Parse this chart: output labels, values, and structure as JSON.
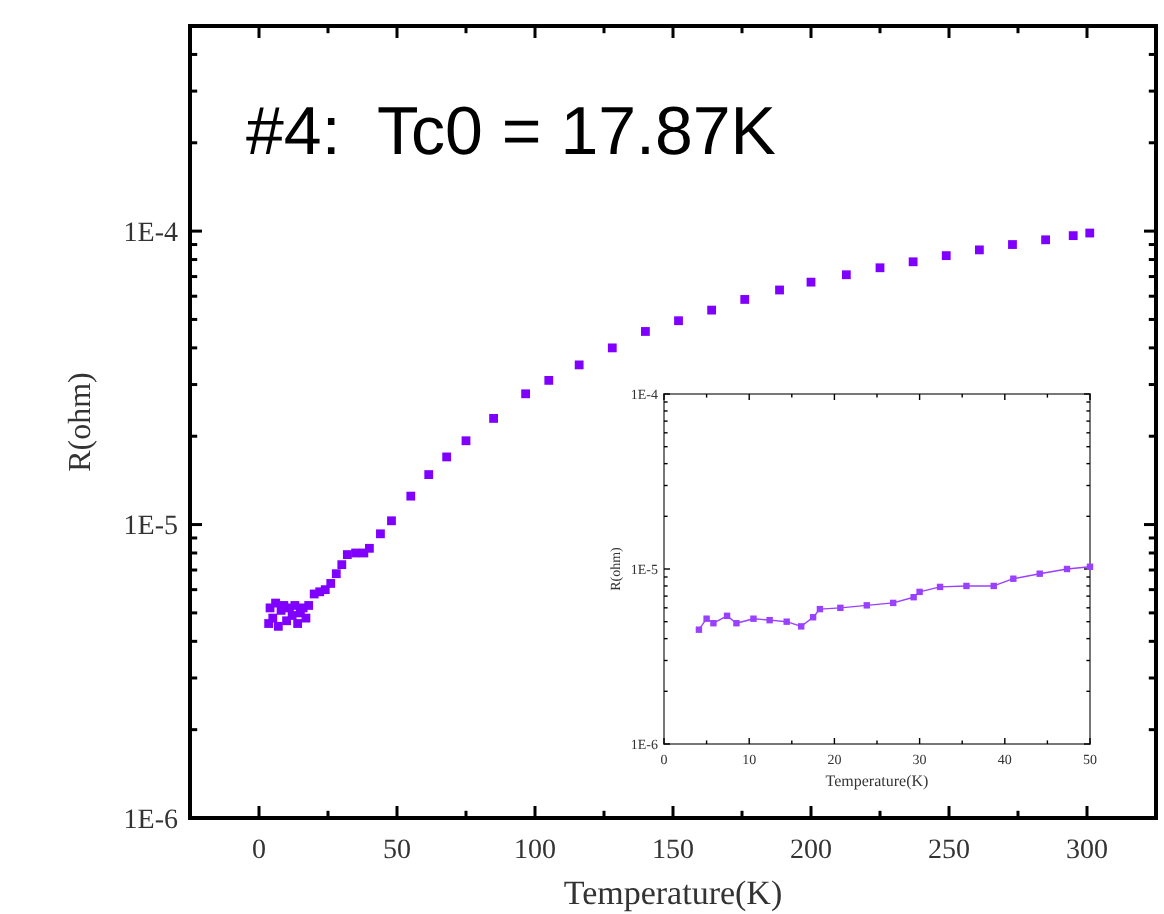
{
  "chart_data": [
    {
      "type": "scatter",
      "title": "#4:  Tc0 = 17.87K",
      "xlabel": "Temperature(K)",
      "ylabel": "R(ohm)",
      "log": "y",
      "marker": "square",
      "xlim": [
        -25,
        325
      ],
      "ylim": [
        1e-06,
        0.0005
      ],
      "xticks": [
        0,
        {
          "value": 25,
          "label": null
        },
        50,
        {
          "value": 75,
          "label": null
        },
        100,
        {
          "value": 125,
          "label": null
        },
        150,
        {
          "value": 175,
          "label": null
        },
        200,
        {
          "value": 225,
          "label": null
        },
        250,
        {
          "value": 275,
          "label": null
        },
        300
      ],
      "yticks": [
        {
          "value": 1e-06,
          "label": "1E-6"
        },
        {
          "value": 2e-06,
          "label": null
        },
        {
          "value": 3e-06,
          "label": null
        },
        {
          "value": 4e-06,
          "label": null
        },
        {
          "value": 5e-06,
          "label": null
        },
        {
          "value": 6e-06,
          "label": null
        },
        {
          "value": 7e-06,
          "label": null
        },
        {
          "value": 8e-06,
          "label": null
        },
        {
          "value": 9e-06,
          "label": null
        },
        {
          "value": 1e-05,
          "label": "1E-5"
        },
        {
          "value": 2e-05,
          "label": null
        },
        {
          "value": 3e-05,
          "label": null
        },
        {
          "value": 4e-05,
          "label": null
        },
        {
          "value": 5e-05,
          "label": null
        },
        {
          "value": 6e-05,
          "label": null
        },
        {
          "value": 7e-05,
          "label": null
        },
        {
          "value": 8e-05,
          "label": null
        },
        {
          "value": 9e-05,
          "label": null
        },
        {
          "value": 0.0001,
          "label": "1E-4"
        },
        {
          "value": 0.0002,
          "label": null
        },
        {
          "value": 0.0003,
          "label": null
        },
        {
          "value": 0.0004,
          "label": null
        }
      ],
      "series": [
        {
          "color": "#7f00ff",
          "x": [
            3.5,
            4,
            5,
            6,
            7,
            8,
            9,
            10,
            11,
            12,
            13,
            14,
            15,
            16,
            17,
            18,
            20,
            22,
            24,
            26,
            28,
            30,
            32,
            35,
            38,
            40,
            44,
            48,
            55,
            61.5,
            68,
            75,
            85,
            96.6,
            105,
            116,
            128,
            140,
            152,
            164,
            176,
            188.6,
            200,
            212.8,
            225,
            237,
            249,
            261,
            273,
            285,
            295,
            301
          ],
          "values": [
            4.6e-06,
            5.2e-06,
            4.8e-06,
            5.4e-06,
            4.5e-06,
            5.1e-06,
            5.3e-06,
            4.7e-06,
            5.2e-06,
            4.9e-06,
            5.3e-06,
            4.6e-06,
            5e-06,
            5.2e-06,
            4.8e-06,
            5.3e-06,
            5.8e-06,
            5.9e-06,
            6e-06,
            6.3e-06,
            6.8e-06,
            7.3e-06,
            7.9e-06,
            8e-06,
            8e-06,
            8.3e-06,
            9.3e-06,
            1.03e-05,
            1.25e-05,
            1.48e-05,
            1.7e-05,
            1.93e-05,
            2.3e-05,
            2.79e-05,
            3.1e-05,
            3.5e-05,
            4e-05,
            4.55e-05,
            4.95e-05,
            5.38e-05,
            5.85e-05,
            6.3e-05,
            6.7e-05,
            7.1e-05,
            7.5e-05,
            7.86e-05,
            8.25e-05,
            8.63e-05,
            9e-05,
            9.34e-05,
            9.65e-05,
            9.85e-05
          ]
        }
      ]
    },
    {
      "type": "line",
      "xlabel": "Temperature(K)",
      "ylabel": "R(ohm)",
      "log": "y",
      "marker": "square",
      "line_style": "solid",
      "xlim": [
        0,
        50
      ],
      "ylim": [
        1e-06,
        0.0001
      ],
      "xticks": [
        0,
        {
          "value": 5,
          "label": null
        },
        10,
        {
          "value": 15,
          "label": null
        },
        20,
        {
          "value": 25,
          "label": null
        },
        30,
        {
          "value": 35,
          "label": null
        },
        40,
        {
          "value": 45,
          "label": null
        },
        50
      ],
      "yticks": [
        {
          "value": 1e-06,
          "label": "1E-6"
        },
        {
          "value": 2e-06,
          "label": null
        },
        {
          "value": 3e-06,
          "label": null
        },
        {
          "value": 4e-06,
          "label": null
        },
        {
          "value": 5e-06,
          "label": null
        },
        {
          "value": 6e-06,
          "label": null
        },
        {
          "value": 7e-06,
          "label": null
        },
        {
          "value": 8e-06,
          "label": null
        },
        {
          "value": 9e-06,
          "label": null
        },
        {
          "value": 1e-05,
          "label": "1E-5"
        },
        {
          "value": 2e-05,
          "label": null
        },
        {
          "value": 3e-05,
          "label": null
        },
        {
          "value": 4e-05,
          "label": null
        },
        {
          "value": 5e-05,
          "label": null
        },
        {
          "value": 6e-05,
          "label": null
        },
        {
          "value": 7e-05,
          "label": null
        },
        {
          "value": 8e-05,
          "label": null
        },
        {
          "value": 9e-05,
          "label": null
        },
        {
          "value": 0.0001,
          "label": "1E-4"
        }
      ],
      "series": [
        {
          "color": "#9a40ff",
          "x": [
            4.1,
            5,
            5.8,
            7.4,
            8.5,
            10.5,
            12.4,
            14.4,
            16.1,
            17.5,
            18.3,
            20.7,
            23.8,
            26.9,
            29.3,
            30,
            32.4,
            35.5,
            38.7,
            41,
            44.1,
            47.3,
            50
          ],
          "values": [
            4.5e-06,
            5.2e-06,
            4.9e-06,
            5.4e-06,
            4.9e-06,
            5.2e-06,
            5.1e-06,
            5e-06,
            4.7e-06,
            5.3e-06,
            5.9e-06,
            6e-06,
            6.2e-06,
            6.4e-06,
            6.9e-06,
            7.4e-06,
            7.9e-06,
            8e-06,
            8e-06,
            8.8e-06,
            9.4e-06,
            1e-05,
            1.03e-05
          ]
        }
      ]
    }
  ]
}
